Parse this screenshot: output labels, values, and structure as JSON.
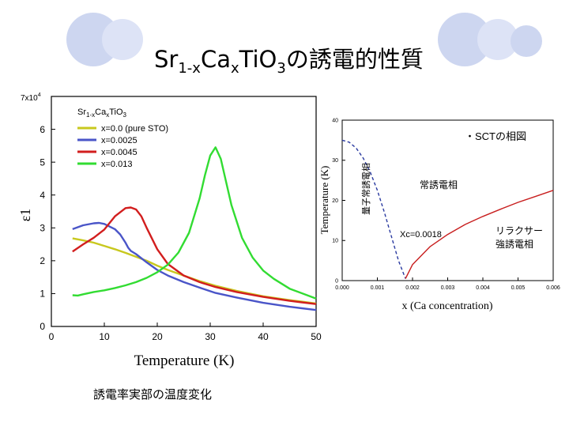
{
  "slide": {
    "title_parts": [
      "Sr",
      "1-x",
      "Ca",
      "x",
      "TiO",
      "3",
      "の誘電的性質"
    ],
    "caption": "誘電率実部の温度変化",
    "circle_colors": [
      "#cdd6f0",
      "#dde3f6"
    ]
  },
  "chart_data": [
    {
      "type": "line",
      "title": "",
      "xlabel": "Temperature (K)",
      "ylabel": "ε1",
      "y_multiplier": "7x10",
      "y_multiplier_exp": "4",
      "xlim": [
        0,
        50
      ],
      "ylim": [
        0,
        7
      ],
      "x_ticks": [
        "0",
        "10",
        "20",
        "30",
        "40",
        "50"
      ],
      "y_ticks": [
        "0",
        "1",
        "2",
        "3",
        "4",
        "5",
        "6"
      ],
      "legend": {
        "title_parts": [
          "Sr",
          "1-x",
          "Ca",
          "x",
          "TiO",
          "3"
        ],
        "placement": "top-left"
      },
      "series": [
        {
          "name": "x=0.0 (pure STO)",
          "color": "#c8c81e",
          "x": [
            4,
            6,
            8,
            10,
            12,
            14,
            16,
            18,
            20,
            22,
            25,
            28,
            31,
            35,
            40,
            45,
            50
          ],
          "y": [
            2.68,
            2.62,
            2.55,
            2.45,
            2.35,
            2.24,
            2.12,
            2.0,
            1.85,
            1.72,
            1.55,
            1.38,
            1.24,
            1.08,
            0.92,
            0.8,
            0.7
          ]
        },
        {
          "name": "x=0.0025",
          "color": "#4a55c8",
          "x": [
            4,
            6,
            8,
            9,
            10,
            12,
            13,
            14,
            14.5,
            15,
            16,
            18,
            20,
            22,
            25,
            28,
            31,
            35,
            40,
            45,
            50
          ],
          "y": [
            2.96,
            3.08,
            3.14,
            3.15,
            3.12,
            2.96,
            2.8,
            2.55,
            2.4,
            2.3,
            2.2,
            1.95,
            1.72,
            1.55,
            1.35,
            1.18,
            1.02,
            0.88,
            0.72,
            0.6,
            0.5
          ]
        },
        {
          "name": "x=0.0045",
          "color": "#d21e1e",
          "x": [
            4,
            6,
            8,
            10,
            12,
            14,
            15,
            16,
            17,
            18,
            20,
            22,
            25,
            28,
            31,
            35,
            40,
            45,
            50
          ],
          "y": [
            2.28,
            2.5,
            2.7,
            2.95,
            3.35,
            3.6,
            3.62,
            3.56,
            3.35,
            3.0,
            2.35,
            1.9,
            1.55,
            1.35,
            1.2,
            1.05,
            0.9,
            0.78,
            0.68
          ]
        },
        {
          "name": "x=0.013",
          "color": "#32dc32",
          "x": [
            4,
            5,
            6,
            8,
            10,
            12,
            14,
            16,
            18,
            20,
            22,
            24,
            26,
            28,
            29,
            30,
            31,
            32,
            33,
            34,
            36,
            38,
            40,
            42,
            45,
            50
          ],
          "y": [
            0.95,
            0.94,
            0.98,
            1.05,
            1.1,
            1.17,
            1.25,
            1.35,
            1.48,
            1.65,
            1.88,
            2.25,
            2.85,
            3.9,
            4.6,
            5.2,
            5.45,
            5.1,
            4.4,
            3.7,
            2.7,
            2.1,
            1.7,
            1.45,
            1.15,
            0.85
          ]
        }
      ]
    },
    {
      "type": "line",
      "title": "",
      "subtitle": "・SCTの相図",
      "xlabel": "x  (Ca concentration)",
      "ylabel": "Temperature (K)",
      "xlim": [
        0,
        0.006
      ],
      "ylim": [
        0,
        40
      ],
      "x_ticks": [
        "0.000",
        "0.001",
        "0.002",
        "0.003",
        "0.004",
        "0.005",
        "0.006"
      ],
      "y_ticks": [
        "0",
        "10",
        "20",
        "30",
        "40"
      ],
      "annotations": {
        "region_left": "量子常誘電相",
        "region_upper": "常誘電相",
        "region_lower_right": [
          "リラクサー",
          "強誘電相"
        ],
        "critical": "Xc=0.0018"
      },
      "series": [
        {
          "style": "dashed",
          "color": "#2a3aa0",
          "x": [
            0.0,
            0.0002,
            0.0004,
            0.0006,
            0.0008,
            0.001,
            0.0012,
            0.0014,
            0.0016,
            0.0018
          ],
          "y": [
            35,
            34.5,
            33,
            30.5,
            27,
            22.5,
            17,
            11,
            5,
            0.5
          ]
        },
        {
          "style": "solid",
          "color": "#c81e1e",
          "x": [
            0.0018,
            0.002,
            0.0025,
            0.003,
            0.0035,
            0.004,
            0.0045,
            0.005,
            0.0055,
            0.006
          ],
          "y": [
            0.5,
            4,
            8.5,
            11.5,
            14,
            16,
            17.8,
            19.5,
            21,
            22.5
          ]
        }
      ]
    }
  ]
}
